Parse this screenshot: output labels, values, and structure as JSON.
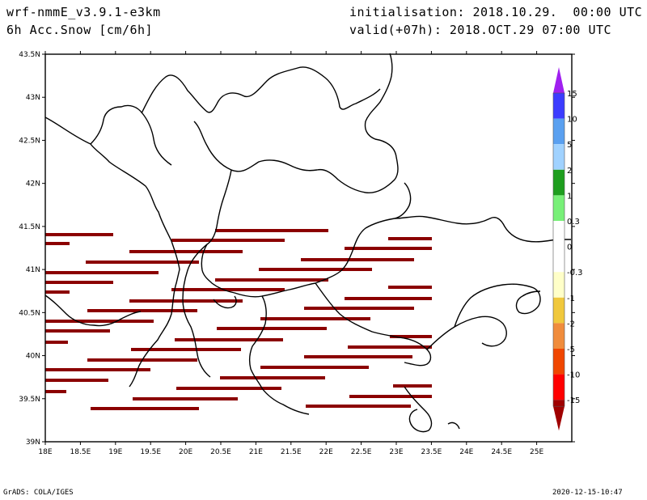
{
  "header": {
    "model": "wrf-nmmE_v3.9.1-e3km",
    "field": "6h Acc.Snow [cm/6h]",
    "initialisation": "initialisation: 2018.10.29.  00:00 UTC",
    "valid": "valid(+07h): 2018.OCT.29 07:00 UTC"
  },
  "footer": {
    "left": "GrADS: COLA/IGES",
    "right": "2020-12-15-10:47"
  },
  "map": {
    "lon_ticks": [
      "18E",
      "18.5E",
      "19E",
      "19.5E",
      "20E",
      "20.5E",
      "21E",
      "21.5E",
      "22E",
      "22.5E",
      "23E",
      "23.5E",
      "24E",
      "24.5E",
      "25E"
    ],
    "lat_ticks": [
      "39N",
      "39.5N",
      "40N",
      "40.5N",
      "41N",
      "41.5N",
      "42N",
      "42.5N",
      "43N",
      "43.5N"
    ],
    "lon_range": [
      18,
      25.5
    ],
    "lat_range": [
      39,
      43.5
    ]
  },
  "colorbar": {
    "labels": [
      "15",
      "10",
      "5",
      "2",
      "1",
      "0.3",
      "0",
      "-0.3",
      "-1",
      "-2",
      "-5",
      "-10",
      "-15"
    ],
    "colors": {
      "purple": "#a020f0",
      "blue": "#3c3cff",
      "mid_blue": "#5aa0f0",
      "light_blue": "#a0d2ff",
      "dark_green": "#1e9e1e",
      "light_green": "#78f078",
      "white": "#ffffff",
      "light_yellow": "#ffffc8",
      "yellow": "#f0c83c",
      "orange": "#f08c3c",
      "red_orange": "#f04600",
      "red": "#ff0000",
      "dark_red": "#a00000"
    }
  },
  "streak_color": "#8b0000"
}
